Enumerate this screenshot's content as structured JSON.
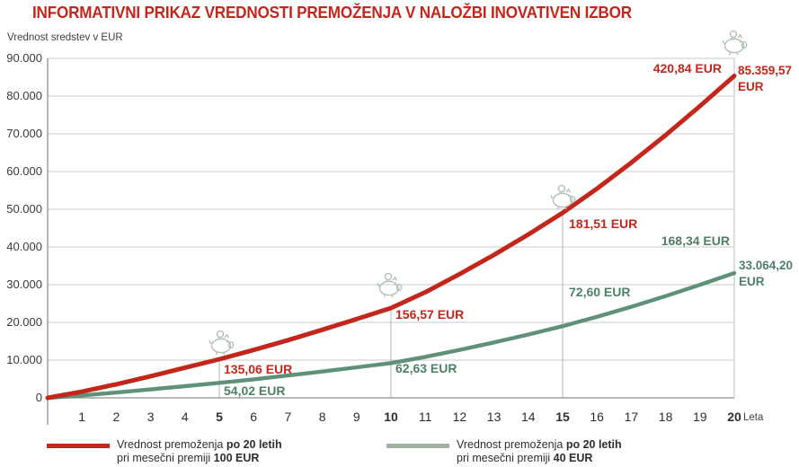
{
  "title": "INFORMATIVNI PRIKAZ VREDNOSTI PREMOŽENJA V NALOŽBI INOVATIVEN IZBOR",
  "axis": {
    "y_label": "Vrednost sredstev v EUR",
    "x_label": "Leta"
  },
  "colors": {
    "red": "#c3261b",
    "green_line": "#5e9178",
    "green_text": "#4e8068",
    "legend_green": "#a0b2a3",
    "piggy": "#b2c2b4",
    "grid": "#c9c9c9",
    "axis_line": "#8f8f8f",
    "marker_line": "#b3b3b3"
  },
  "chart_data": {
    "type": "line",
    "title": "INFORMATIVNI PRIKAZ VREDNOSTI PREMOŽENJA V NALOŽBI INOVATIVEN IZBOR",
    "ylabel": "Vrednost sredstev v EUR",
    "xlabel": "Leta",
    "ylim": [
      0,
      90000
    ],
    "ytick_values": [
      0,
      10000,
      20000,
      30000,
      40000,
      50000,
      60000,
      70000,
      80000,
      90000
    ],
    "ytick_labels": [
      "0",
      "10.000",
      "20.000",
      "30.000",
      "40.000",
      "50.000",
      "60.000",
      "70.000",
      "80.000",
      "90.000"
    ],
    "xticks": [
      1,
      2,
      3,
      4,
      5,
      6,
      7,
      8,
      9,
      10,
      11,
      12,
      13,
      14,
      15,
      16,
      17,
      18,
      19,
      20
    ],
    "xticks_bold": [
      5,
      10,
      15,
      20
    ],
    "grid": "horizontal",
    "legend_position": "bottom",
    "x": [
      0,
      1,
      2,
      3,
      4,
      5,
      6,
      7,
      8,
      9,
      10,
      11,
      12,
      13,
      14,
      15,
      16,
      17,
      18,
      19,
      20
    ],
    "series": [
      {
        "name": "Vrednost premoženja po 20 letih pri mesečni premiji 100 EUR",
        "color_key": "red",
        "values": [
          0,
          1650,
          3600,
          5750,
          8000,
          10238,
          12688,
          15288,
          18038,
          20888,
          23810,
          28010,
          32810,
          37910,
          43310,
          49048,
          55448,
          62348,
          69648,
          77348,
          85359.57
        ],
        "end_value": 85359.57,
        "end_label_lines": [
          "85.359,57",
          "EUR"
        ]
      },
      {
        "name": "Vrednost premoženja po 20 letih pri mesečni premiji 40 EUR",
        "color_key": "green",
        "values": [
          0,
          639,
          1395,
          2228,
          3099,
          3966,
          4915,
          5923,
          6988,
          8092,
          9224,
          10851,
          12711,
          14686,
          16778,
          19001,
          21481,
          24154,
          26982,
          29965,
          33064.2
        ],
        "end_value": 33064.2,
        "end_label_lines": [
          "33.064,20",
          "EUR"
        ]
      }
    ],
    "markers": [
      {
        "year": 5,
        "red_label": "135,06 EUR",
        "green_label": "54,02 EUR"
      },
      {
        "year": 10,
        "red_label": "156,57 EUR",
        "green_label": "62,63 EUR"
      },
      {
        "year": 15,
        "red_label": "181,51 EUR",
        "green_label": "72,60 EUR"
      },
      {
        "year": 20,
        "red_label": "420,84 EUR",
        "green_label": "168,34 EUR"
      }
    ]
  },
  "legend": [
    {
      "line1_normal": "Vrednost premoženja ",
      "line1_bold": "po 20 letih",
      "line2_normal": "pri mesečni premiji ",
      "line2_bold": "100 EUR"
    },
    {
      "line1_normal": "Vrednost premoženja ",
      "line1_bold": "po 20 letih",
      "line2_normal": "pri mesečni premiji ",
      "line2_bold": "40 EUR"
    }
  ]
}
